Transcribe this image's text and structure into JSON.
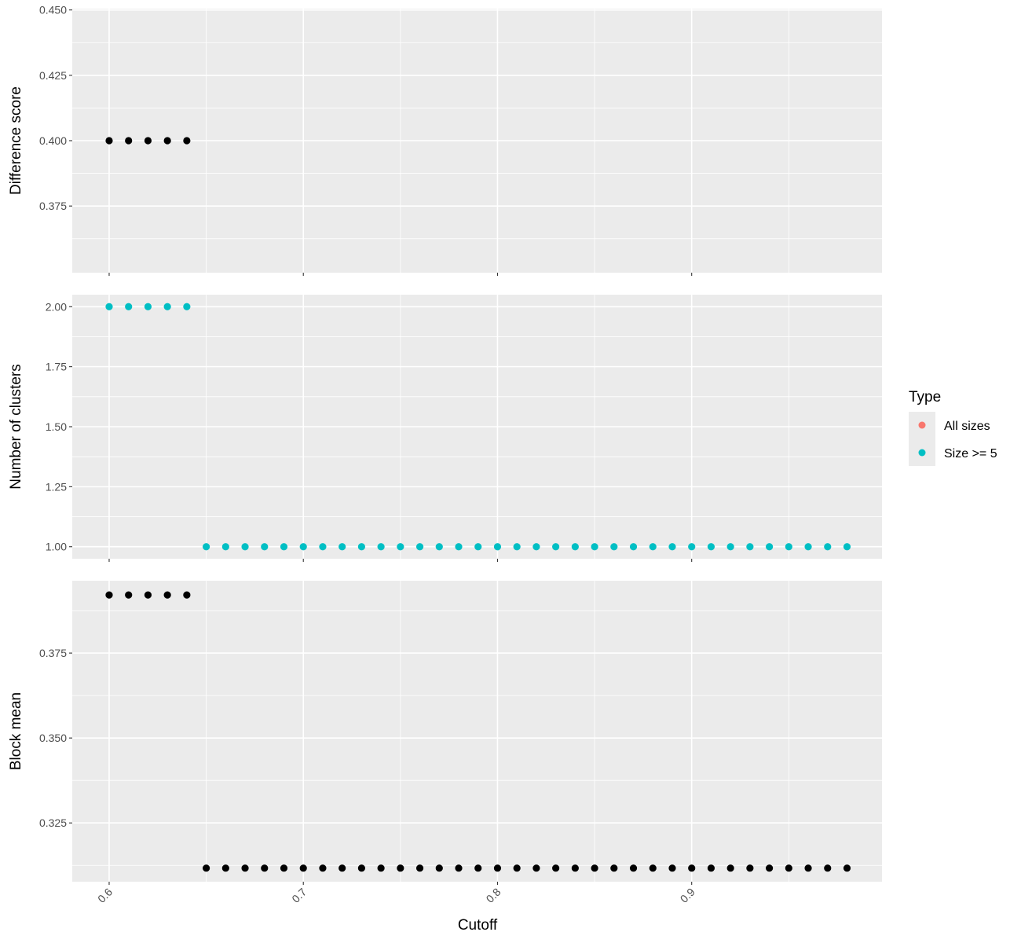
{
  "chart_data": {
    "type": "scatter",
    "x_label": "Cutoff",
    "x_range": [
      0.581,
      0.998
    ],
    "x_ticks": [
      "0.6",
      "0.7",
      "0.8",
      "0.9"
    ],
    "x_tick_values": [
      0.6,
      0.7,
      0.8,
      0.9
    ],
    "legend": {
      "title": "Type",
      "position": "right",
      "entries": [
        {
          "label": "All sizes",
          "color": "#F8766D"
        },
        {
          "label": "Size >= 5",
          "color": "#00BFC4"
        }
      ]
    },
    "panels": [
      {
        "ylabel": "Difference score",
        "ylim": [
          0.3495,
          0.4505
        ],
        "yticks": [
          "0.375",
          "0.400",
          "0.425",
          "0.450"
        ],
        "ytick_values": [
          0.375,
          0.4,
          0.425,
          0.45
        ],
        "series": [
          {
            "color": "#000000",
            "x": [
              0.6,
              0.61,
              0.62,
              0.63,
              0.64
            ],
            "y": [
              0.4,
              0.4,
              0.4,
              0.4,
              0.4
            ]
          }
        ]
      },
      {
        "ylabel": "Number of clusters",
        "ylim": [
          0.95,
          2.05
        ],
        "yticks": [
          "1.00",
          "1.25",
          "1.50",
          "1.75",
          "2.00"
        ],
        "ytick_values": [
          1.0,
          1.25,
          1.5,
          1.75,
          2.0
        ],
        "series": [
          {
            "name": "Size >= 5",
            "color": "#00BFC4",
            "x": [
              0.6,
              0.61,
              0.62,
              0.63,
              0.64,
              0.65,
              0.66,
              0.67,
              0.68,
              0.69,
              0.7,
              0.71,
              0.72,
              0.73,
              0.74,
              0.75,
              0.76,
              0.77,
              0.78,
              0.79,
              0.8,
              0.81,
              0.82,
              0.83,
              0.84,
              0.85,
              0.86,
              0.87,
              0.88,
              0.89,
              0.9,
              0.91,
              0.92,
              0.93,
              0.94,
              0.95,
              0.96,
              0.97,
              0.98
            ],
            "y": [
              2,
              2,
              2,
              2,
              2,
              1,
              1,
              1,
              1,
              1,
              1,
              1,
              1,
              1,
              1,
              1,
              1,
              1,
              1,
              1,
              1,
              1,
              1,
              1,
              1,
              1,
              1,
              1,
              1,
              1,
              1,
              1,
              1,
              1,
              1,
              1,
              1,
              1,
              1
            ]
          }
        ]
      },
      {
        "ylabel": "Block mean",
        "ylim": [
          0.3077,
          0.3963
        ],
        "yticks": [
          "0.325",
          "0.350",
          "0.375"
        ],
        "ytick_values": [
          0.325,
          0.35,
          0.375
        ],
        "series": [
          {
            "color": "#000000",
            "x": [
              0.6,
              0.61,
              0.62,
              0.63,
              0.64,
              0.65,
              0.66,
              0.67,
              0.68,
              0.69,
              0.7,
              0.71,
              0.72,
              0.73,
              0.74,
              0.75,
              0.76,
              0.77,
              0.78,
              0.79,
              0.8,
              0.81,
              0.82,
              0.83,
              0.84,
              0.85,
              0.86,
              0.87,
              0.88,
              0.89,
              0.9,
              0.91,
              0.92,
              0.93,
              0.94,
              0.95,
              0.96,
              0.97,
              0.98
            ],
            "y": [
              0.3921,
              0.3921,
              0.3921,
              0.3921,
              0.3921,
              0.3117,
              0.3117,
              0.3117,
              0.3117,
              0.3117,
              0.3117,
              0.3117,
              0.3117,
              0.3117,
              0.3117,
              0.3117,
              0.3117,
              0.3117,
              0.3117,
              0.3117,
              0.3117,
              0.3117,
              0.3117,
              0.3117,
              0.3117,
              0.3117,
              0.3117,
              0.3117,
              0.3117,
              0.3117,
              0.3117,
              0.3117,
              0.3117,
              0.3117,
              0.3117,
              0.3117,
              0.3117,
              0.3117,
              0.3117
            ]
          }
        ]
      }
    ]
  }
}
